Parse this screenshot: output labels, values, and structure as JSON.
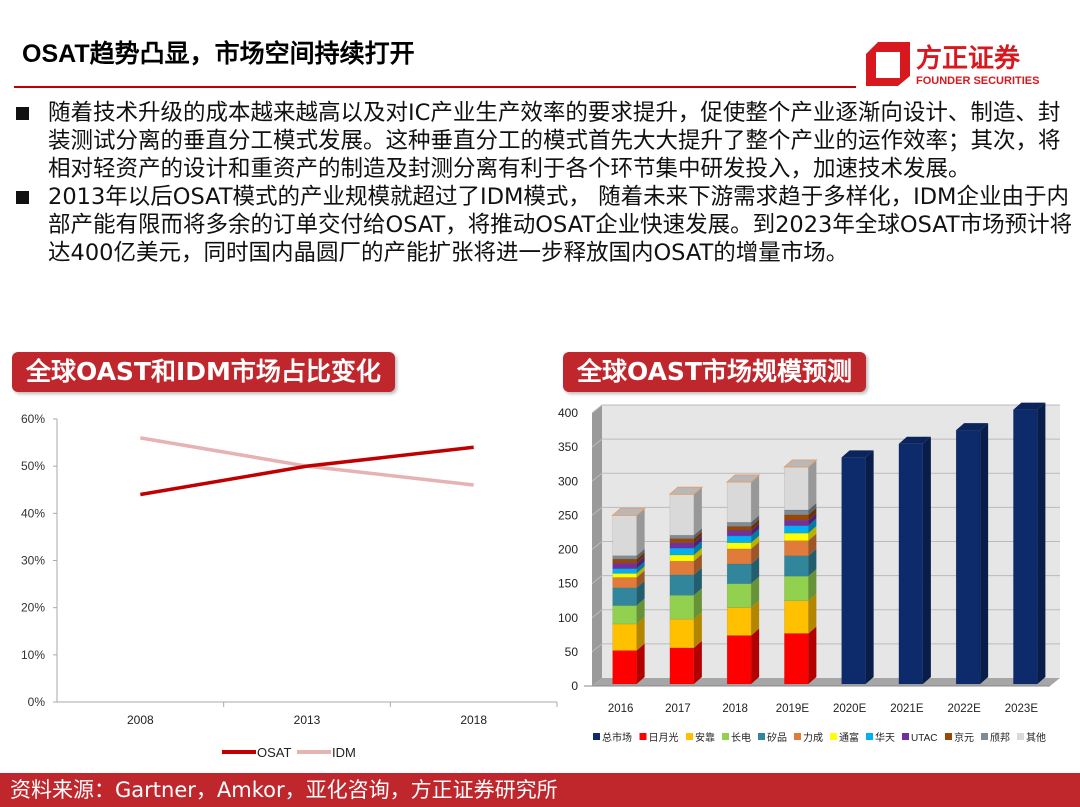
{
  "header": {
    "title": "OSAT趋势凸显，市场空间持续打开",
    "logo_cn": "方正证券",
    "logo_en": "FOUNDER SECURITIES",
    "accent": "#c0272d"
  },
  "bullets": [
    "随着技术升级的成本越来越高以及对IC产业生产效率的要求提升，促使整个产业逐渐向设计、制造、封装测试分离的垂直分工模式发展。这种垂直分工的模式首先大大提升了整个产业的运作效率；其次，将相对轻资产的设计和重资产的制造及封测分离有利于各个环节集中研发投入，加速技术发展。",
    "2013年以后OSAT模式的产业规模就超过了IDM模式， 随着未来下游需求趋于多样化，IDM企业由于内部产能有限而将多余的订单交付给OSAT，将推动OSAT企业快速发展。到2023年全球OSAT市场预计将达400亿美元，同时国内晶圆厂的产能扩张将进一步释放国内OSAT的增量市场。"
  ],
  "sections": {
    "left": "全球OAST和IDM市场占比变化",
    "right": "全球OAST市场规模预测"
  },
  "footer": "资料来源：Gartner，Amkor，亚化咨询，方正证券研究所",
  "chart_data": [
    {
      "type": "line",
      "categories": [
        "2008",
        "2013",
        "2018"
      ],
      "ylim": [
        0,
        0.6
      ],
      "yticks": [
        "0%",
        "10%",
        "20%",
        "30%",
        "40%",
        "50%",
        "60%"
      ],
      "series": [
        {
          "name": "OSAT",
          "values": [
            0.44,
            0.5,
            0.54
          ],
          "color": "#c00000"
        },
        {
          "name": "IDM",
          "values": [
            0.56,
            0.5,
            0.46
          ],
          "color": "#e6b2b2"
        }
      ],
      "legend": "bottom",
      "grid": false
    },
    {
      "type": "bar",
      "stacked": true,
      "three_d": true,
      "categories": [
        "2016",
        "2017",
        "2018",
        "2019E",
        "2020E",
        "2021E",
        "2022E",
        "2023E"
      ],
      "ylim": [
        0,
        400
      ],
      "yticks": [
        "0",
        "50",
        "100",
        "150",
        "200",
        "250",
        "300",
        "350",
        "400"
      ],
      "grid": true,
      "legend": "bottom",
      "series": [
        {
          "name": "总市场",
          "color": "#0d2a6b",
          "values": [
            null,
            null,
            null,
            null,
            332,
            352,
            372,
            402
          ]
        },
        {
          "name": "日月光",
          "color": "#ff0000",
          "values": [
            49,
            53,
            71,
            74,
            null,
            null,
            null,
            null
          ]
        },
        {
          "name": "安靠",
          "color": "#ffc000",
          "values": [
            39,
            42,
            41,
            48,
            null,
            null,
            null,
            null
          ]
        },
        {
          "name": "长电",
          "color": "#92d050",
          "values": [
            27,
            35,
            35,
            36,
            null,
            null,
            null,
            null
          ]
        },
        {
          "name": "矽品",
          "color": "#31869b",
          "values": [
            26,
            30,
            29,
            30,
            null,
            null,
            null,
            null
          ]
        },
        {
          "name": "力成",
          "color": "#e07b39",
          "values": [
            15,
            20,
            22,
            22,
            null,
            null,
            null,
            null
          ]
        },
        {
          "name": "通富",
          "color": "#ffff00",
          "values": [
            6,
            9,
            9,
            11,
            null,
            null,
            null,
            null
          ]
        },
        {
          "name": "华天",
          "color": "#00b0f0",
          "values": [
            7,
            10,
            10,
            11,
            null,
            null,
            null,
            null
          ]
        },
        {
          "name": "UTAC",
          "color": "#7030a0",
          "values": [
            8,
            8,
            8,
            8,
            null,
            null,
            null,
            null
          ]
        },
        {
          "name": "京元",
          "color": "#974706",
          "values": [
            6,
            6,
            6,
            8,
            null,
            null,
            null,
            null
          ]
        },
        {
          "name": "颀邦",
          "color": "#7f8c96",
          "values": [
            5,
            5,
            6,
            7,
            null,
            null,
            null,
            null
          ]
        },
        {
          "name": "其他",
          "color": "#d9d9d9",
          "values": [
            59,
            60,
            59,
            63,
            null,
            null,
            null,
            null
          ]
        }
      ]
    }
  ]
}
